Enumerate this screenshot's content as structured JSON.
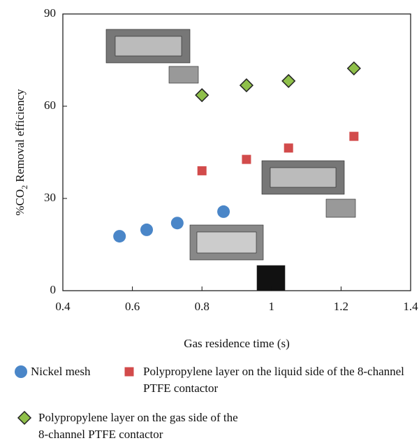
{
  "chart_data": {
    "type": "scatter",
    "x_label": "Gas residence time (s)",
    "y_label": {
      "main": "%CO",
      "sub": "2",
      "rest": " Removal efficiency"
    },
    "xlim": [
      0.4,
      1.4
    ],
    "xticks": [
      0.4,
      0.6,
      0.8,
      1,
      1.2,
      1.4
    ],
    "ylim": [
      0,
      90
    ],
    "yticks": [
      0,
      30,
      60,
      90
    ],
    "grid": false,
    "series": [
      {
        "name": "Nickel mesh",
        "color": "#4a86c8",
        "marker": "circle",
        "x": [
          0.563,
          0.641,
          0.729,
          0.862
        ],
        "values": [
          17.7,
          19.8,
          22,
          25.7
        ]
      },
      {
        "name": "Polypropylene layer on the liquid side of the 8-channel PTFE contactor",
        "color": "#d24b4b",
        "marker": "square",
        "x": [
          0.8,
          0.928,
          1.049,
          1.237
        ],
        "values": [
          39,
          42.7,
          46.4,
          50.2
        ]
      },
      {
        "name": "Polypropylene layer on the gas side of the 8-channel PTFE contactor",
        "color": "#8fc04a",
        "marker": "diamond",
        "x": [
          0.8,
          0.928,
          1.049,
          1.237
        ],
        "values": [
          63.6,
          66.8,
          68.2,
          72.3
        ]
      }
    ]
  }
}
